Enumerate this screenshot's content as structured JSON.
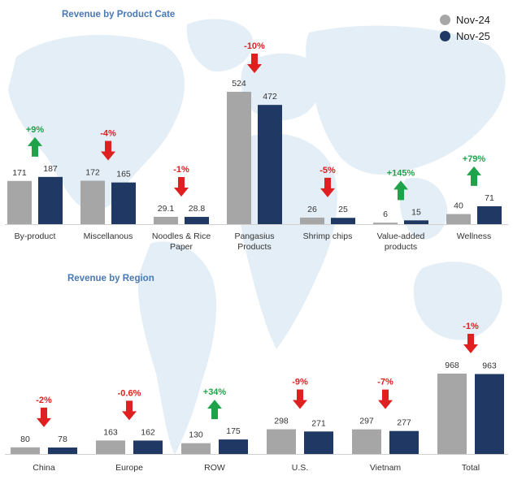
{
  "legend": [
    {
      "name": "Nov-24",
      "color": "#a6a6a6"
    },
    {
      "name": "Nov-25",
      "color": "#1f3864"
    }
  ],
  "colors": {
    "up": "#1fa34a",
    "down": "#e02020",
    "title": "#4a78b4",
    "label": "#333333",
    "map": "#e3eef6"
  },
  "chart_data": [
    {
      "type": "bar",
      "title": "Revenue by Product Cate",
      "series_names": [
        "Nov-24",
        "Nov-25"
      ],
      "categories": [
        {
          "label": [
            "By-product"
          ],
          "prev": 171,
          "curr": 187,
          "prev_label": "171",
          "curr_label": "187",
          "change": "+9%",
          "dir": "up"
        },
        {
          "label": [
            "Miscellanous"
          ],
          "prev": 172,
          "curr": 165,
          "prev_label": "172",
          "curr_label": "165",
          "change": "-4%",
          "dir": "down"
        },
        {
          "label": [
            "Noodles & Rice",
            "Paper"
          ],
          "prev": 29.1,
          "curr": 28.8,
          "prev_label": "29.1",
          "curr_label": "28.8",
          "change": "-1%",
          "dir": "down"
        },
        {
          "label": [
            "Pangasius",
            "Products"
          ],
          "prev": 524,
          "curr": 472,
          "prev_label": "524",
          "curr_label": "472",
          "change": "-10%",
          "dir": "down"
        },
        {
          "label": [
            "Shrimp chips"
          ],
          "prev": 26,
          "curr": 25,
          "prev_label": "26",
          "curr_label": "25",
          "change": "-5%",
          "dir": "down"
        },
        {
          "label": [
            "Value-added",
            "products"
          ],
          "prev": 6,
          "curr": 15,
          "prev_label": "6",
          "curr_label": "15",
          "change": "+145%",
          "dir": "up"
        },
        {
          "label": [
            "Wellness"
          ],
          "prev": 40,
          "curr": 71,
          "prev_label": "40",
          "curr_label": "71",
          "change": "+79%",
          "dir": "up"
        }
      ]
    },
    {
      "type": "bar",
      "title": "Revenue by Region",
      "series_names": [
        "Nov-24",
        "Nov-25"
      ],
      "categories": [
        {
          "label": [
            "China"
          ],
          "prev": 80,
          "curr": 78,
          "prev_label": "80",
          "curr_label": "78",
          "change": "-2%",
          "dir": "down"
        },
        {
          "label": [
            "Europe"
          ],
          "prev": 163,
          "curr": 162,
          "prev_label": "163",
          "curr_label": "162",
          "change": "-0.6%",
          "dir": "down"
        },
        {
          "label": [
            "ROW"
          ],
          "prev": 130,
          "curr": 175,
          "prev_label": "130",
          "curr_label": "175",
          "change": "+34%",
          "dir": "up"
        },
        {
          "label": [
            "U.S."
          ],
          "prev": 298,
          "curr": 271,
          "prev_label": "298",
          "curr_label": "271",
          "change": "-9%",
          "dir": "down"
        },
        {
          "label": [
            "Vietnam"
          ],
          "prev": 297,
          "curr": 277,
          "prev_label": "297",
          "curr_label": "277",
          "change": "-7%",
          "dir": "down"
        },
        {
          "label": [
            "Total"
          ],
          "prev": 968,
          "curr": 963,
          "prev_label": "968",
          "curr_label": "963",
          "change": "-1%",
          "dir": "down"
        }
      ]
    }
  ]
}
